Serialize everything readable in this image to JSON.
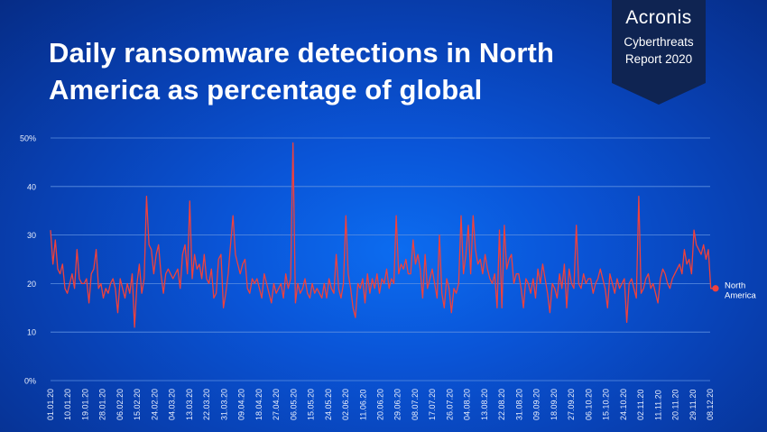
{
  "title_line1": "Daily ransomware detections in North",
  "title_line2": "America as percentage of global",
  "badge": {
    "brand": "Acronis",
    "line1": "Cyberthreats",
    "line2": "Report 2020"
  },
  "colors": {
    "line": "#f0413c",
    "grid": "#5d8fe0",
    "badge_bg": "#0f2452",
    "label": "#e8eefc"
  },
  "chart_data": {
    "type": "line",
    "ylim": [
      0,
      50
    ],
    "yticks": [
      "50%",
      "40",
      "30",
      "20",
      "10",
      "0%"
    ],
    "xlabels": [
      "01.01.20",
      "10.01.20",
      "19.01.20",
      "28.01.20",
      "06.02.20",
      "15.02.20",
      "24.02.20",
      "04.03.20",
      "13.03.20",
      "22.03.20",
      "31.03.20",
      "09.04.20",
      "18.04.20",
      "27.04.20",
      "06.05.20",
      "15.05.20",
      "24.05.20",
      "02.06.20",
      "11.06.20",
      "20.06.20",
      "29.06.20",
      "08.07.20",
      "17.07.20",
      "26.07.20",
      "04.08.20",
      "13.08.20",
      "22.08.20",
      "31.08.20",
      "09.09.20",
      "18.09.20",
      "27.09.20",
      "06.10.20",
      "15.10.20",
      "24.10.20",
      "02.11.20",
      "11.11.20",
      "20.11.20",
      "29.11.20",
      "08.12.20"
    ],
    "series": [
      {
        "name": "North America",
        "values": [
          31,
          24,
          29,
          23,
          22,
          24,
          19,
          18,
          20,
          22,
          19,
          27,
          21,
          20,
          20,
          21,
          16,
          22,
          23,
          27,
          19,
          20,
          17,
          19,
          18,
          20,
          21,
          19,
          14,
          21,
          19,
          17,
          20,
          18,
          22,
          11,
          20,
          24,
          18,
          21,
          38,
          28,
          27,
          22,
          26,
          28,
          22,
          18,
          22,
          23,
          22,
          21,
          22,
          23,
          19,
          26,
          28,
          22,
          37,
          21,
          26,
          23,
          24,
          21,
          26,
          21,
          20,
          23,
          17,
          18,
          25,
          26,
          15,
          18,
          22,
          28,
          34,
          26,
          24,
          22,
          24,
          25,
          19,
          18,
          21,
          20,
          21,
          19,
          17,
          22,
          20,
          18,
          16,
          20,
          18,
          19,
          20,
          17,
          22,
          19,
          21,
          49,
          16,
          20,
          18,
          19,
          21,
          18,
          17,
          20,
          18,
          19,
          18,
          17,
          20,
          17,
          21,
          19,
          18,
          26,
          19,
          17,
          20,
          34,
          22,
          19,
          15,
          13,
          20,
          19,
          21,
          16,
          22,
          18,
          21,
          19,
          22,
          18,
          21,
          20,
          23,
          19,
          21,
          20,
          34,
          22,
          24,
          23,
          25,
          22,
          22,
          29,
          24,
          26,
          23,
          17,
          26,
          19,
          21,
          23,
          20,
          17,
          30,
          18,
          15,
          21,
          19,
          14,
          19,
          18,
          20,
          34,
          22,
          26,
          32,
          22,
          34,
          27,
          24,
          25,
          22,
          26,
          23,
          21,
          20,
          22,
          15,
          31,
          15,
          32,
          23,
          25,
          26,
          20,
          22,
          22,
          19,
          15,
          21,
          20,
          18,
          21,
          17,
          23,
          20,
          24,
          21,
          18,
          14,
          20,
          19,
          17,
          22,
          19,
          24,
          15,
          23,
          20,
          19,
          32,
          20,
          19,
          22,
          20,
          21,
          21,
          18,
          20,
          21,
          23,
          21,
          19,
          15,
          22,
          20,
          18,
          21,
          19,
          20,
          21,
          12,
          20,
          21,
          19,
          17,
          38,
          18,
          19,
          21,
          22,
          19,
          20,
          18,
          16,
          21,
          23,
          22,
          20,
          19,
          21,
          22,
          23,
          24,
          22,
          27,
          24,
          25,
          22,
          31,
          28,
          27,
          26,
          28,
          25,
          27,
          19,
          19,
          19
        ]
      }
    ],
    "series_label_line1": "North",
    "series_label_line2": "America"
  }
}
